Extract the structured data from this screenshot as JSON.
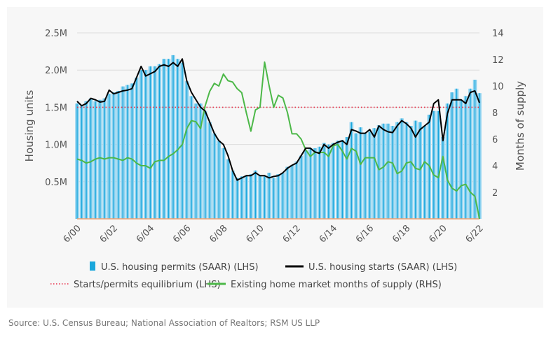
{
  "source": "Source: U.S. Census Bureau; National Association of Realtors; RSM US LLP",
  "chart_data": {
    "type": "bar+line",
    "title": "",
    "ylabel_left": "Housing units",
    "ylabel_right": "Months of supply",
    "ylim_left": [
      0,
      2500000
    ],
    "ylim_right": [
      0,
      14
    ],
    "yticks_left": [
      {
        "v": 500000,
        "label": "0.5M"
      },
      {
        "v": 1000000,
        "label": "1.0M"
      },
      {
        "v": 1500000,
        "label": "1.5M"
      },
      {
        "v": 2000000,
        "label": "2.0M"
      },
      {
        "v": 2500000,
        "label": "2.5M"
      }
    ],
    "yticks_right": [
      {
        "v": 2,
        "label": "2"
      },
      {
        "v": 4,
        "label": "4"
      },
      {
        "v": 6,
        "label": "6"
      },
      {
        "v": 8,
        "label": "8"
      },
      {
        "v": 10,
        "label": "10"
      },
      {
        "v": 12,
        "label": "12"
      },
      {
        "v": 14,
        "label": "14"
      }
    ],
    "xlim": [
      "2000-06",
      "2022-06"
    ],
    "xticks": [
      {
        "v": "2000-06",
        "label": "6/00"
      },
      {
        "v": "2002-06",
        "label": "6/02"
      },
      {
        "v": "2004-06",
        "label": "6/04"
      },
      {
        "v": "2006-06",
        "label": "6/06"
      },
      {
        "v": "2008-06",
        "label": "6/08"
      },
      {
        "v": "2010-06",
        "label": "6/10"
      },
      {
        "v": "2012-06",
        "label": "6/12"
      },
      {
        "v": "2014-06",
        "label": "6/14"
      },
      {
        "v": "2016-06",
        "label": "6/16"
      },
      {
        "v": "2018-06",
        "label": "6/18"
      },
      {
        "v": "2020-06",
        "label": "6/20"
      },
      {
        "v": "2022-06",
        "label": "6/22"
      }
    ],
    "grid": "horizontal",
    "legend_placement": "bottom",
    "colors": {
      "permits": "#1aa7dc",
      "permits_light": "#8fd3f0",
      "starts": "#000000",
      "equilibrium": "#e8304a",
      "supply": "#4cb848",
      "baseline": "#f0a070"
    },
    "dates": [
      "2000-06",
      "2000-09",
      "2000-12",
      "2001-03",
      "2001-06",
      "2001-09",
      "2001-12",
      "2002-03",
      "2002-06",
      "2002-09",
      "2002-12",
      "2003-03",
      "2003-06",
      "2003-09",
      "2003-12",
      "2004-03",
      "2004-06",
      "2004-09",
      "2004-12",
      "2005-03",
      "2005-06",
      "2005-09",
      "2005-12",
      "2006-03",
      "2006-06",
      "2006-09",
      "2006-12",
      "2007-03",
      "2007-06",
      "2007-09",
      "2007-12",
      "2008-03",
      "2008-06",
      "2008-09",
      "2008-12",
      "2009-03",
      "2009-06",
      "2009-09",
      "2009-12",
      "2010-03",
      "2010-06",
      "2010-09",
      "2010-12",
      "2011-03",
      "2011-06",
      "2011-09",
      "2011-12",
      "2012-03",
      "2012-06",
      "2012-09",
      "2012-12",
      "2013-03",
      "2013-06",
      "2013-09",
      "2013-12",
      "2014-03",
      "2014-06",
      "2014-09",
      "2014-12",
      "2015-03",
      "2015-06",
      "2015-09",
      "2015-12",
      "2016-03",
      "2016-06",
      "2016-09",
      "2016-12",
      "2017-03",
      "2017-06",
      "2017-09",
      "2017-12",
      "2018-03",
      "2018-06",
      "2018-09",
      "2018-12",
      "2019-03",
      "2019-06",
      "2019-09",
      "2019-12",
      "2020-03",
      "2020-06",
      "2020-09",
      "2020-12",
      "2021-03",
      "2021-06",
      "2021-09",
      "2021-12",
      "2022-03",
      "2022-06"
    ],
    "series": [
      {
        "name": "U.S. housing permits (SAAR) (LHS)",
        "kind": "bar",
        "axis": "left",
        "unit": "millions",
        "values": [
          1.55,
          1.52,
          1.58,
          1.62,
          1.58,
          1.6,
          1.62,
          1.68,
          1.7,
          1.72,
          1.78,
          1.8,
          1.82,
          1.9,
          2.0,
          2.0,
          2.05,
          2.05,
          2.08,
          2.15,
          2.15,
          2.2,
          2.15,
          2.1,
          1.85,
          1.65,
          1.55,
          1.55,
          1.45,
          1.3,
          1.15,
          1.05,
          0.95,
          0.8,
          0.65,
          0.55,
          0.57,
          0.58,
          0.6,
          0.65,
          0.58,
          0.57,
          0.62,
          0.55,
          0.6,
          0.62,
          0.7,
          0.72,
          0.77,
          0.85,
          0.92,
          0.95,
          0.95,
          0.97,
          1.02,
          1.0,
          1.02,
          1.05,
          1.06,
          1.1,
          1.3,
          1.15,
          1.23,
          1.15,
          1.17,
          1.22,
          1.26,
          1.28,
          1.28,
          1.25,
          1.3,
          1.35,
          1.3,
          1.25,
          1.32,
          1.3,
          1.25,
          1.4,
          1.45,
          1.45,
          1.1,
          1.55,
          1.7,
          1.75,
          1.6,
          1.65,
          1.75,
          1.87,
          1.69
        ]
      },
      {
        "name": "U.S. housing starts (SAAR) (LHS)",
        "kind": "line",
        "axis": "left",
        "unit": "millions",
        "values": [
          1.58,
          1.52,
          1.55,
          1.62,
          1.6,
          1.57,
          1.58,
          1.73,
          1.68,
          1.7,
          1.72,
          1.73,
          1.75,
          1.9,
          2.05,
          1.92,
          1.95,
          1.98,
          2.05,
          2.07,
          2.05,
          2.1,
          2.05,
          2.15,
          1.85,
          1.7,
          1.6,
          1.5,
          1.45,
          1.3,
          1.15,
          1.05,
          1.0,
          0.85,
          0.65,
          0.52,
          0.55,
          0.58,
          0.58,
          0.62,
          0.58,
          0.58,
          0.55,
          0.57,
          0.58,
          0.62,
          0.68,
          0.72,
          0.75,
          0.85,
          0.95,
          0.95,
          0.9,
          0.88,
          1.0,
          0.95,
          1.0,
          1.03,
          1.05,
          1.0,
          1.2,
          1.18,
          1.15,
          1.15,
          1.2,
          1.1,
          1.25,
          1.2,
          1.17,
          1.16,
          1.25,
          1.32,
          1.28,
          1.22,
          1.1,
          1.2,
          1.25,
          1.3,
          1.55,
          1.6,
          1.05,
          1.42,
          1.6,
          1.6,
          1.6,
          1.55,
          1.7,
          1.72,
          1.56
        ]
      },
      {
        "name": "Starts/permits equilibrium (LHS)",
        "kind": "hline",
        "axis": "left",
        "value": 1.5,
        "unit": "millions"
      },
      {
        "name": "Existing home market months of supply (RHS)",
        "kind": "line",
        "axis": "right",
        "unit": "months",
        "values": [
          4.5,
          4.4,
          4.2,
          4.3,
          4.5,
          4.6,
          4.5,
          4.6,
          4.6,
          4.5,
          4.4,
          4.6,
          4.5,
          4.2,
          4.0,
          4.0,
          3.8,
          4.3,
          4.4,
          4.4,
          4.7,
          4.9,
          5.2,
          5.6,
          6.8,
          7.4,
          7.3,
          6.8,
          8.5,
          9.6,
          10.2,
          10.0,
          10.9,
          10.4,
          10.3,
          9.8,
          9.5,
          8.0,
          6.6,
          8.2,
          8.4,
          11.8,
          10.0,
          8.4,
          9.3,
          9.1,
          8.0,
          6.4,
          6.4,
          6.0,
          5.2,
          4.7,
          5.0,
          5.0,
          5.0,
          4.7,
          5.5,
          5.6,
          5.1,
          4.5,
          5.3,
          5.1,
          4.1,
          4.6,
          4.6,
          4.6,
          3.7,
          3.9,
          4.3,
          4.2,
          3.4,
          3.6,
          4.2,
          4.3,
          3.8,
          3.7,
          4.3,
          4.0,
          3.3,
          3.1,
          4.7,
          2.9,
          2.3,
          2.1,
          2.5,
          2.6,
          2.0,
          1.7,
          0
        ]
      }
    ]
  }
}
